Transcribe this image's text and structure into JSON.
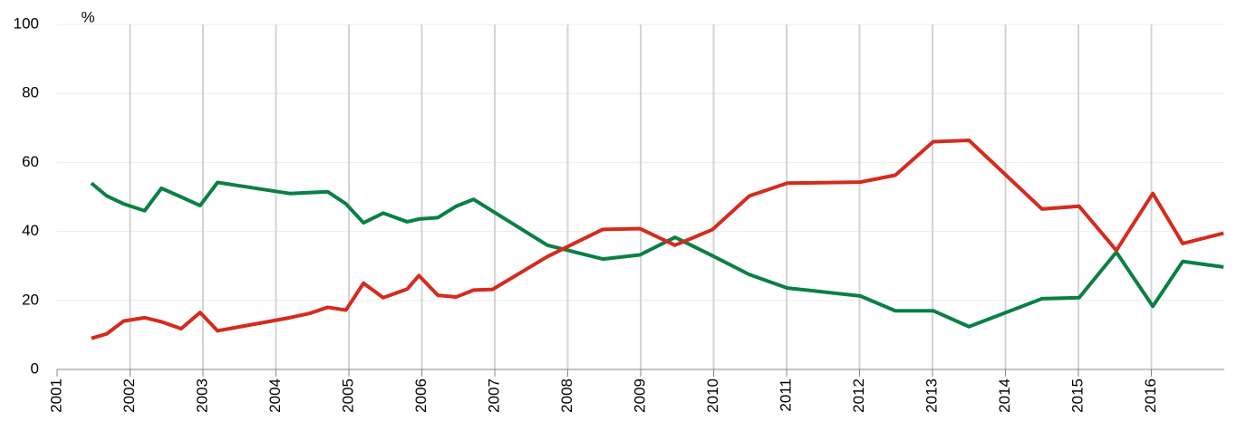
{
  "chart_data": {
    "type": "line",
    "y_label": "%",
    "xlim": [
      2001,
      2017
    ],
    "xticks": [
      2001,
      2002,
      2003,
      2004,
      2005,
      2006,
      2007,
      2008,
      2009,
      2010,
      2011,
      2012,
      2013,
      2014,
      2015,
      2016
    ],
    "ylim": [
      0,
      100
    ],
    "yticks": [
      0,
      20,
      40,
      60,
      80,
      100
    ],
    "grid": true,
    "series": [
      {
        "color": "#0a8044",
        "x": [
          2001.47,
          2001.68,
          2001.91,
          2002.2,
          2002.43,
          2002.7,
          2002.96,
          2003.2,
          2004.19,
          2004.71,
          2004.96,
          2005.2,
          2005.47,
          2005.8,
          2005.96,
          2006.22,
          2006.47,
          2006.71,
          2007.72,
          2008.48,
          2008.99,
          2009.47,
          2009.98,
          2010.49,
          2011.01,
          2012.01,
          2012.49,
          2013.01,
          2013.5,
          2014.5,
          2015.01,
          2015.52,
          2016.02,
          2016.43,
          2016.99
        ],
        "values": [
          54,
          50.3,
          48,
          46,
          52.5,
          50,
          47.5,
          54.2,
          51,
          51.5,
          48,
          42.5,
          45.3,
          42.8,
          43.6,
          44,
          47.3,
          49.3,
          36,
          32,
          33.2,
          38.3,
          33,
          27.5,
          23.6,
          21.3,
          17,
          17,
          12.4,
          20.5,
          20.8,
          34,
          18.3,
          31.3,
          29.7
        ]
      },
      {
        "color": "#d52b1e",
        "x": [
          2001.47,
          2001.68,
          2001.91,
          2002.2,
          2002.43,
          2002.7,
          2002.96,
          2003.2,
          2004.19,
          2004.47,
          2004.71,
          2004.96,
          2005.2,
          2005.47,
          2005.8,
          2005.96,
          2006.22,
          2006.47,
          2006.71,
          2006.97,
          2007.72,
          2008.48,
          2008.99,
          2009.47,
          2009.98,
          2010.49,
          2011.01,
          2012.01,
          2012.49,
          2013.01,
          2013.5,
          2014.5,
          2015.01,
          2015.52,
          2016.02,
          2016.43,
          2016.99
        ],
        "values": [
          9,
          10.3,
          14,
          15,
          13.8,
          11.8,
          16.5,
          11.2,
          15,
          16.3,
          18,
          17.2,
          25,
          20.8,
          23.3,
          27.2,
          21.5,
          21,
          23,
          23.2,
          32.7,
          40.6,
          40.8,
          36,
          40.5,
          50.3,
          54,
          54.3,
          56.3,
          66,
          66.4,
          46.5,
          47.3,
          34.5,
          51,
          36.5,
          39.5
        ]
      }
    ]
  }
}
